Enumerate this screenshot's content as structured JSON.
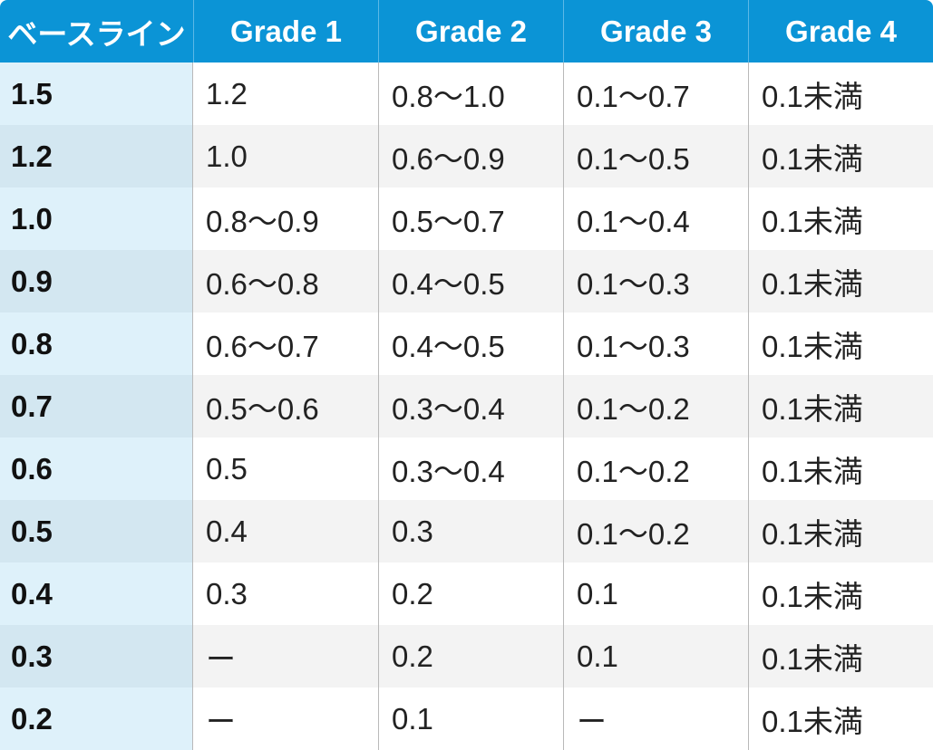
{
  "headers": [
    "ベースライン",
    "Grade 1",
    "Grade 2",
    "Grade 3",
    "Grade 4"
  ],
  "rows": [
    [
      "1.5",
      "1.2",
      "0.8〜1.0",
      "0.1〜0.7",
      "0.1未満"
    ],
    [
      "1.2",
      "1.0",
      "0.6〜0.9",
      "0.1〜0.5",
      "0.1未満"
    ],
    [
      "1.0",
      "0.8〜0.9",
      "0.5〜0.7",
      "0.1〜0.4",
      "0.1未満"
    ],
    [
      "0.9",
      "0.6〜0.8",
      "0.4〜0.5",
      "0.1〜0.3",
      "0.1未満"
    ],
    [
      "0.8",
      "0.6〜0.7",
      "0.4〜0.5",
      "0.1〜0.3",
      "0.1未満"
    ],
    [
      "0.7",
      "0.5〜0.6",
      "0.3〜0.4",
      "0.1〜0.2",
      "0.1未満"
    ],
    [
      "0.6",
      "0.5",
      "0.3〜0.4",
      "0.1〜0.2",
      "0.1未満"
    ],
    [
      "0.5",
      "0.4",
      "0.3",
      "0.1〜0.2",
      "0.1未満"
    ],
    [
      "0.4",
      "0.3",
      "0.2",
      "0.1",
      "0.1未満"
    ],
    [
      "0.3",
      "ー",
      "0.2",
      "0.1",
      "0.1未満"
    ],
    [
      "0.2",
      "ー",
      "0.1",
      "ー",
      "0.1未満"
    ]
  ],
  "colors": {
    "header_bg": "#0b94d6",
    "baseline_bg": "#def1fa",
    "stripe_bg": "#f3f3f3",
    "border": "#b9b9b9"
  }
}
